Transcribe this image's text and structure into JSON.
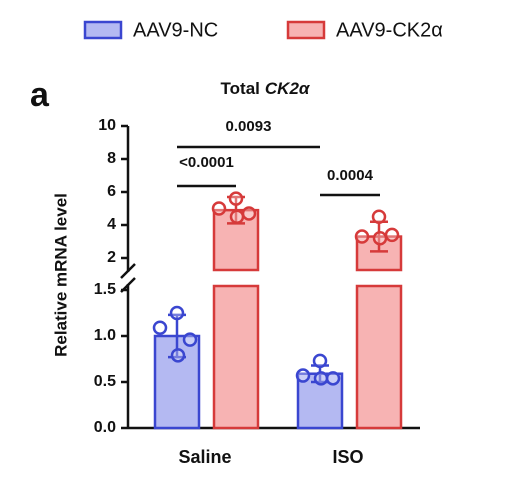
{
  "chart_data": {
    "type": "bar",
    "panel_label": "a",
    "title": [
      "Total",
      "CK2α"
    ],
    "y_label": "Relative mRNA level",
    "categories": [
      "Saline",
      "ISO"
    ],
    "y_segments": [
      {
        "ylim": [
          0,
          1.5
        ],
        "yticks": [
          {
            "value": 0,
            "label": "0.0"
          },
          0.5,
          {
            "value": 1,
            "label": "1.0"
          },
          1.5
        ]
      },
      {
        "ylim": [
          2,
          10
        ],
        "yticks": [
          2,
          4,
          6,
          8,
          10
        ]
      }
    ],
    "series": [
      {
        "name": "AAV9-NC",
        "color": "#3a46d0",
        "fill": "#b4b9f2",
        "values": [
          1.0,
          0.59
        ],
        "errors": [
          0.23,
          0.09
        ],
        "points": [
          [
            1.25,
            1.09,
            0.96,
            0.79
          ],
          [
            0.73,
            0.57,
            0.54,
            0.54
          ]
        ]
      },
      {
        "name": "AAV9-CK2α",
        "color": "#d63a3a",
        "fill": "#f7b3b3",
        "values": [
          4.9,
          3.3
        ],
        "errors": [
          0.8,
          0.9
        ],
        "points": [
          [
            5.6,
            5.0,
            4.7,
            4.5
          ],
          [
            4.5,
            3.3,
            3.4,
            3.2
          ]
        ]
      }
    ],
    "annotations": [
      "<0.0001",
      "0.0004",
      "0.0093"
    ]
  }
}
